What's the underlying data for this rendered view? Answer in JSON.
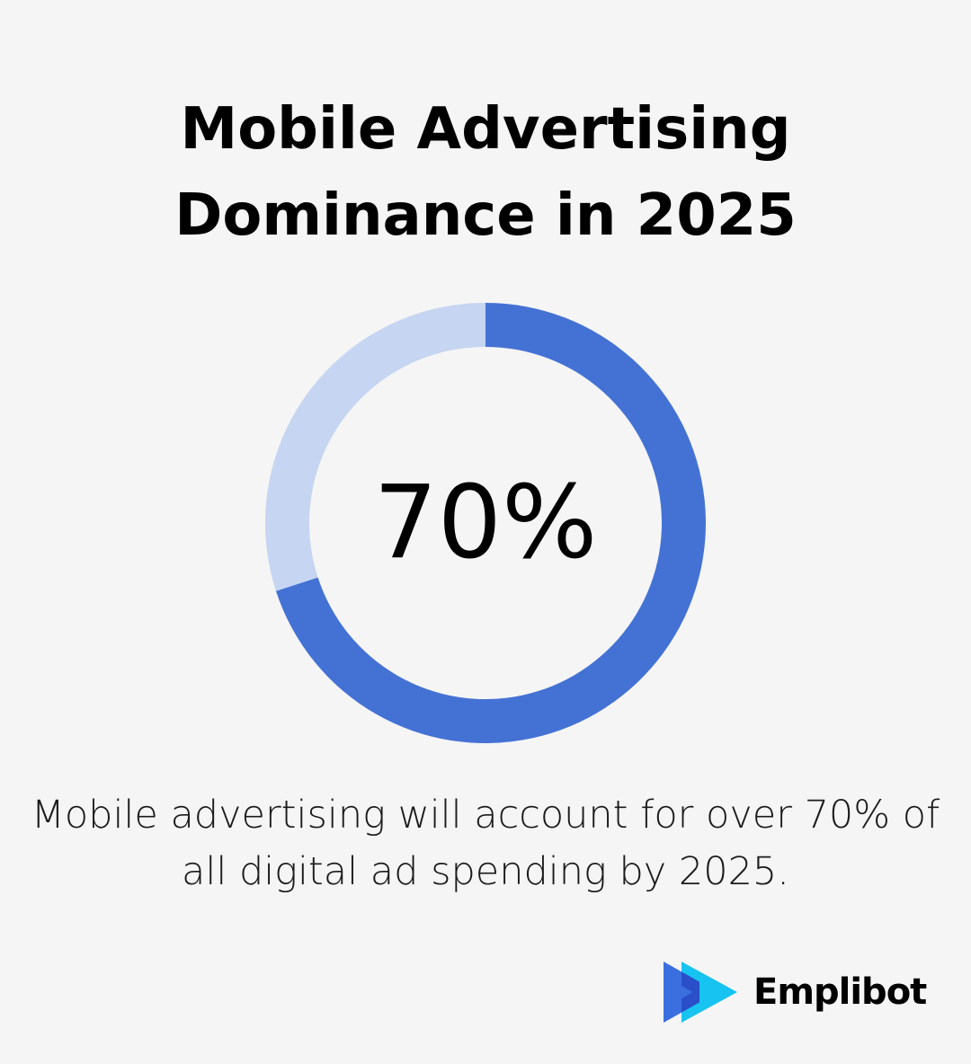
{
  "title_lines": [
    "Mobile Advertising",
    "Dominance in 2025"
  ],
  "chart_data": {
    "type": "pie",
    "value_percent": 70,
    "remainder_percent": 30,
    "center_label": "70%",
    "colors": {
      "value": "#4472d4",
      "remainder": "#c6d5f1"
    }
  },
  "caption_lines": [
    "Mobile advertising will account for over 70% of",
    "all digital ad spending by 2025."
  ],
  "brand": {
    "name": "Emplibot",
    "icon": "play-logo-icon",
    "colors": {
      "primary": "#3b6fe0",
      "secondary": "#17c3f0"
    }
  }
}
